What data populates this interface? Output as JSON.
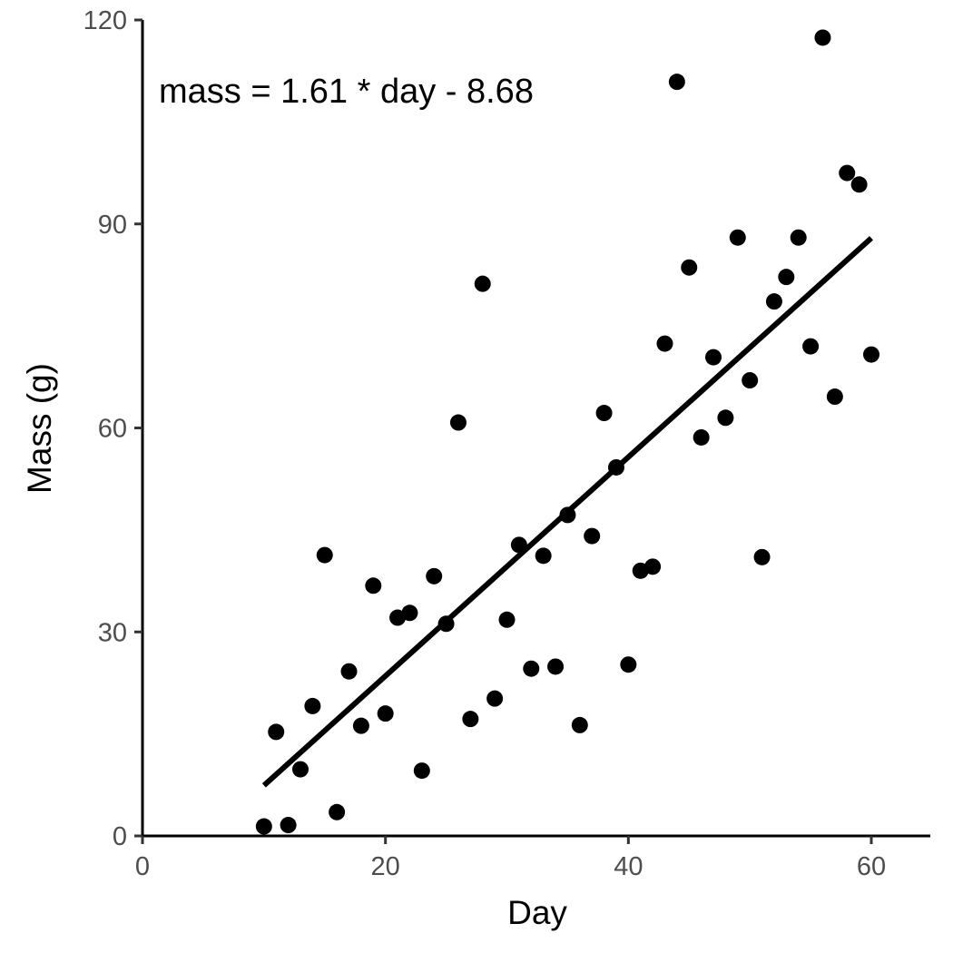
{
  "chart_data": {
    "type": "scatter",
    "title": "",
    "xlabel": "Day",
    "ylabel": "Mass (g)",
    "xlim": [
      0,
      65
    ],
    "ylim": [
      0,
      120
    ],
    "x_ticks": [
      0,
      20,
      40,
      60
    ],
    "y_ticks": [
      0,
      30,
      60,
      90,
      120
    ],
    "grid": false,
    "annotation": "mass = 1.61 * day - 8.68",
    "fit_line": {
      "slope": 1.61,
      "intercept": -8.68,
      "x_range": [
        10,
        60
      ]
    },
    "point_color": "#000000",
    "line_color": "#000000",
    "points": [
      [
        10,
        1.4
      ],
      [
        11,
        15.3
      ],
      [
        12,
        1.6
      ],
      [
        13,
        9.8
      ],
      [
        14,
        19.1
      ],
      [
        15,
        41.3
      ],
      [
        16,
        3.5
      ],
      [
        17,
        24.2
      ],
      [
        18,
        16.2
      ],
      [
        19,
        36.8
      ],
      [
        20,
        18.0
      ],
      [
        21,
        32.1
      ],
      [
        22,
        32.8
      ],
      [
        23,
        9.6
      ],
      [
        24,
        38.2
      ],
      [
        25,
        31.2
      ],
      [
        26,
        60.8
      ],
      [
        27,
        17.2
      ],
      [
        28,
        81.2
      ],
      [
        29,
        20.2
      ],
      [
        30,
        31.8
      ],
      [
        31,
        42.8
      ],
      [
        32,
        24.6
      ],
      [
        33,
        41.2
      ],
      [
        34,
        24.9
      ],
      [
        35,
        47.2
      ],
      [
        36,
        16.3
      ],
      [
        37,
        44.1
      ],
      [
        38,
        62.2
      ],
      [
        39,
        54.2
      ],
      [
        40,
        25.2
      ],
      [
        41,
        39.0
      ],
      [
        42,
        39.6
      ],
      [
        43,
        72.4
      ],
      [
        44,
        110.9
      ],
      [
        45,
        83.6
      ],
      [
        46,
        58.6
      ],
      [
        47,
        70.4
      ],
      [
        48,
        61.5
      ],
      [
        49,
        88.0
      ],
      [
        50,
        67.0
      ],
      [
        51,
        41.0
      ],
      [
        52,
        78.6
      ],
      [
        53,
        82.2
      ],
      [
        54,
        88.0
      ],
      [
        55,
        72.0
      ],
      [
        56,
        117.4
      ],
      [
        57,
        64.6
      ],
      [
        58,
        97.5
      ],
      [
        59,
        95.8
      ],
      [
        60,
        70.8
      ]
    ]
  }
}
